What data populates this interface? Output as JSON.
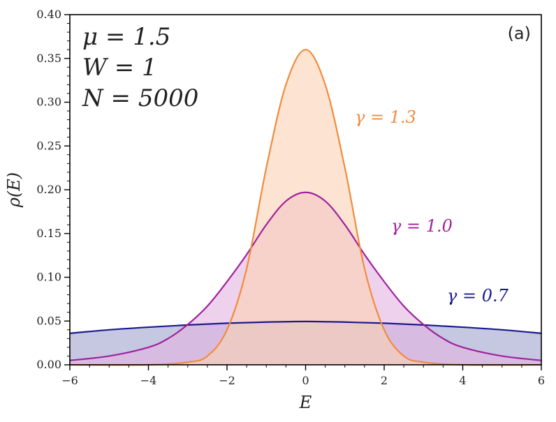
{
  "chart_data": {
    "type": "area",
    "panel_label": "(a)",
    "xlabel": "E",
    "ylabel": "ρ(E)",
    "xlim": [
      -6,
      6
    ],
    "ylim": [
      0,
      0.4
    ],
    "x_ticks": [
      -6,
      -4,
      -2,
      0,
      2,
      4,
      6
    ],
    "x_tick_labels": [
      "−6",
      "−4",
      "−2",
      "0",
      "2",
      "4",
      "6"
    ],
    "y_ticks": [
      0,
      0.05,
      0.1,
      0.15,
      0.2,
      0.25,
      0.3,
      0.35,
      0.4
    ],
    "y_tick_labels": [
      "0.00",
      "0.05",
      "0.10",
      "0.15",
      "0.20",
      "0.25",
      "0.30",
      "0.35",
      "0.40"
    ],
    "parameters": [
      "μ = 1.5",
      "W = 1",
      "N = 5000"
    ],
    "grid": false,
    "series": [
      {
        "label": "γ = 0.7",
        "color": "#1a1a8c",
        "fill": "#9fa3cc",
        "x": [
          -6,
          -5,
          -4,
          -3,
          -2,
          -1,
          0,
          1,
          2,
          3,
          4,
          5,
          6
        ],
        "y": [
          0.036,
          0.04,
          0.043,
          0.0455,
          0.0475,
          0.0488,
          0.0495,
          0.0488,
          0.0475,
          0.0455,
          0.043,
          0.04,
          0.036
        ]
      },
      {
        "label": "γ = 1.0",
        "color": "#a0229e",
        "fill": "#e2b3e0",
        "x": [
          -6,
          -5,
          -4,
          -3.5,
          -3,
          -2.5,
          -2,
          -1.5,
          -1,
          -0.5,
          0,
          0.5,
          1,
          1.5,
          2,
          2.5,
          3,
          3.5,
          4,
          5,
          6
        ],
        "y": [
          0.005,
          0.01,
          0.02,
          0.03,
          0.046,
          0.067,
          0.095,
          0.126,
          0.16,
          0.187,
          0.197,
          0.187,
          0.16,
          0.126,
          0.095,
          0.067,
          0.046,
          0.03,
          0.02,
          0.01,
          0.005
        ]
      },
      {
        "label": "γ = 1.3",
        "color": "#f08c3c",
        "fill": "#fbd2b4",
        "x": [
          -6,
          -4,
          -3,
          -2.5,
          -2,
          -1.5,
          -1,
          -0.5,
          0,
          0.5,
          1,
          1.5,
          2,
          2.5,
          3,
          4,
          6
        ],
        "y": [
          0.0,
          0.0,
          0.003,
          0.01,
          0.04,
          0.11,
          0.225,
          0.32,
          0.36,
          0.32,
          0.225,
          0.11,
          0.04,
          0.01,
          0.003,
          0.0,
          0.0
        ]
      }
    ]
  }
}
